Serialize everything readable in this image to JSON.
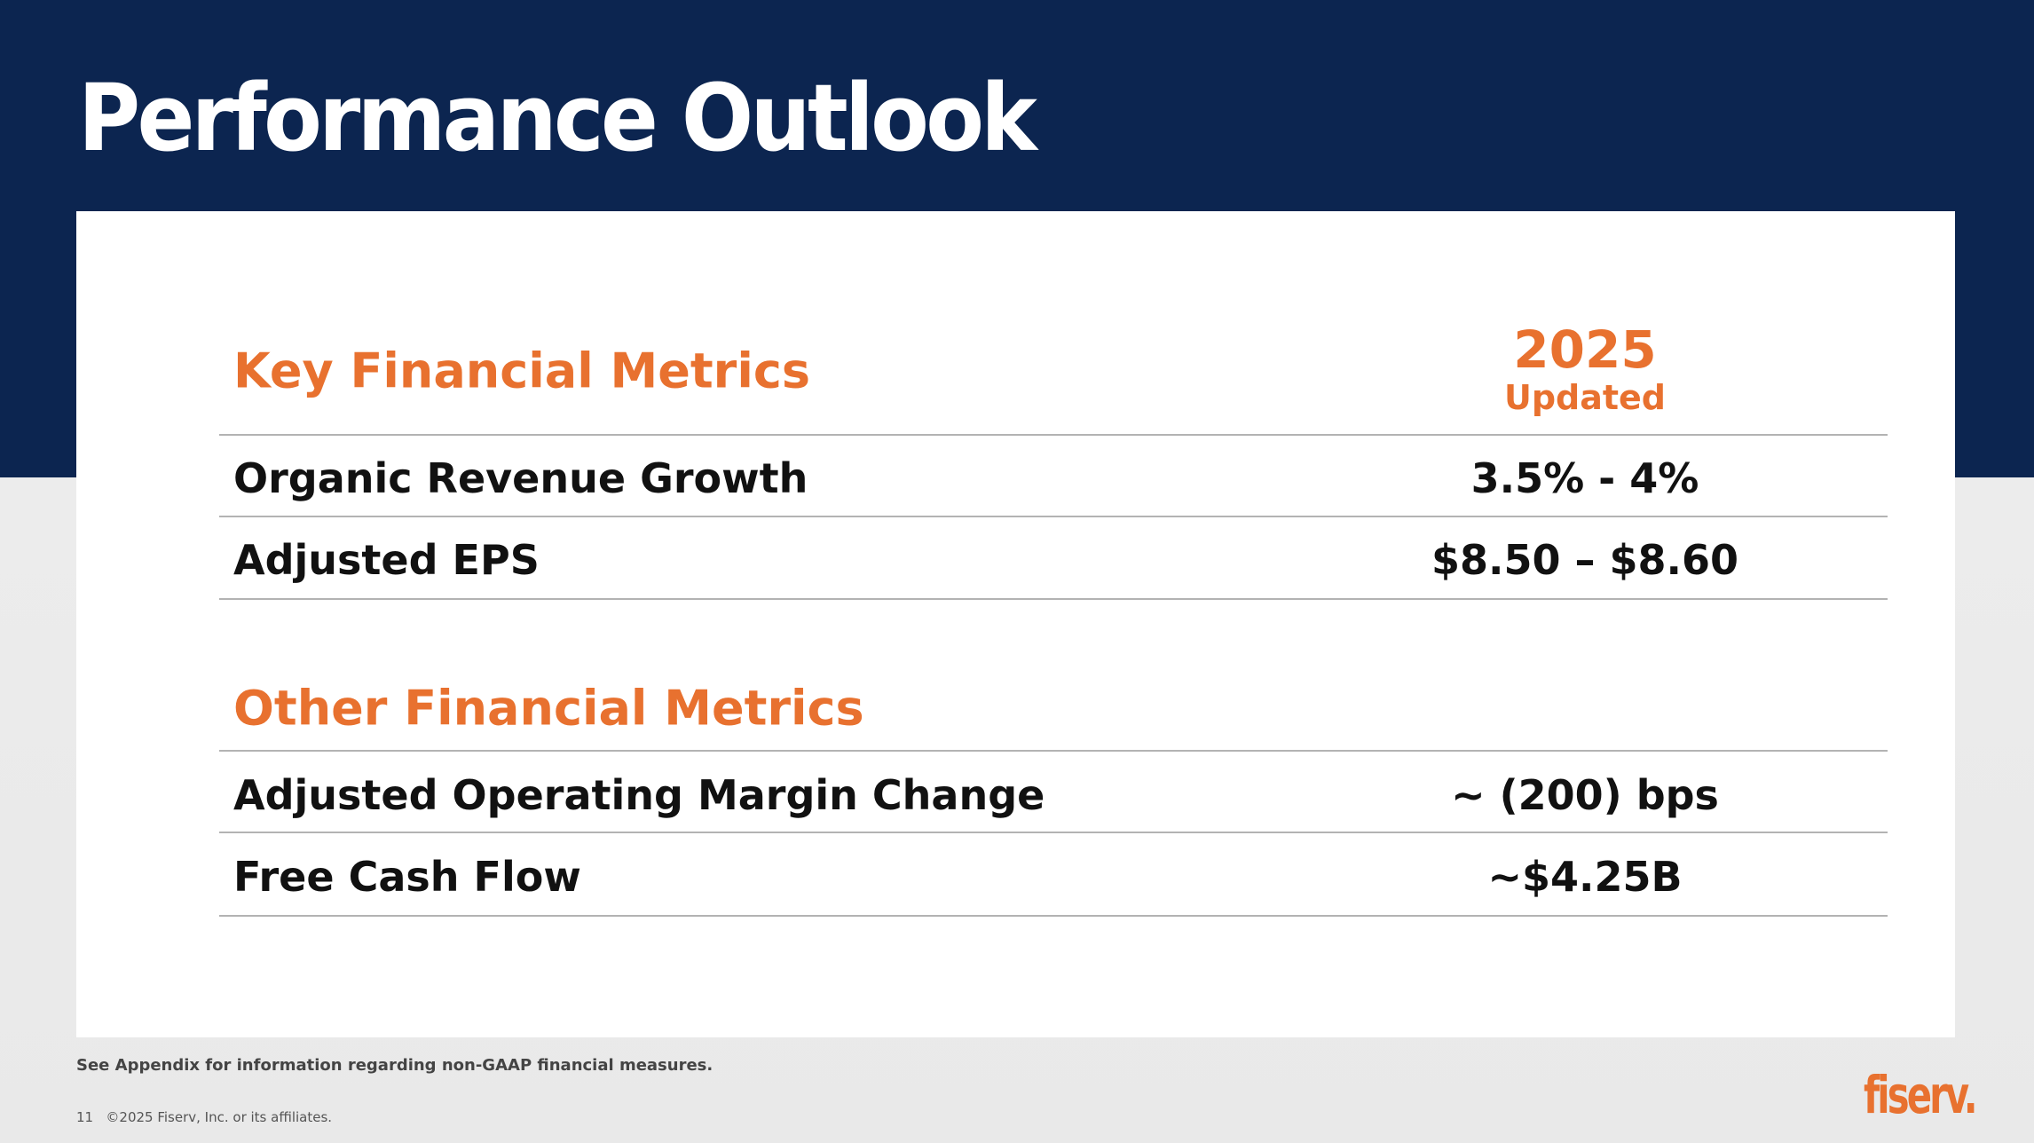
{
  "title": "Performance Outlook",
  "key_section": {
    "heading": "Key Financial Metrics",
    "year": "2025",
    "year_sub": "Updated",
    "rows": [
      {
        "label": "Organic Revenue Growth",
        "value": "3.5% - 4%"
      },
      {
        "label": "Adjusted EPS",
        "value": "$8.50 – $8.60"
      }
    ]
  },
  "other_section": {
    "heading": "Other Financial Metrics",
    "rows": [
      {
        "label": "Adjusted Operating Margin Change",
        "value": "~ (200) bps"
      },
      {
        "label": "Free Cash Flow",
        "value": "~$4.25B"
      }
    ]
  },
  "footer": {
    "note": "See Appendix for information regarding non-GAAP financial measures.",
    "page": "11",
    "copyright": "©2025 Fiserv, Inc. or its affiliates.",
    "logo": "fiserv."
  },
  "colors": {
    "navy": "#0c2550",
    "orange": "#e8712f"
  }
}
